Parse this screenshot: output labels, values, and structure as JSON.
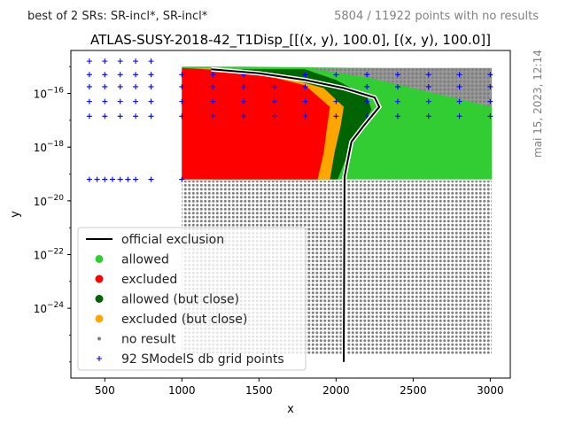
{
  "header": {
    "left": "best of 2 SRs: SR-incl*, SR-incl*",
    "right": "5804 / 11922 points with no results"
  },
  "side_note": "mai 15, 2023, 12:14",
  "chart_data": {
    "type": "scatter",
    "title": "ATLAS-SUSY-2018-42_T1Disp_[[(x, y), 100.0], [(x, y), 100.0]]",
    "xlabel": "x",
    "ylabel": "y",
    "xlim": [
      280,
      3130
    ],
    "ylog_lim": [
      -26.6,
      -14.4
    ],
    "y_scale": "log",
    "xticks": [
      500,
      1000,
      1500,
      2000,
      2500,
      3000
    ],
    "yticks": [
      {
        "exp": -16,
        "label": "10",
        "sup": "−16"
      },
      {
        "exp": -18,
        "label": "10",
        "sup": "−18"
      },
      {
        "exp": -20,
        "label": "10",
        "sup": "−20"
      },
      {
        "exp": -22,
        "label": "10",
        "sup": "−22"
      },
      {
        "exp": -24,
        "label": "10",
        "sup": "−24"
      }
    ],
    "colors": {
      "allowed": "#32cd32",
      "excluded": "#ff0000",
      "allowed_close": "#006400",
      "excluded_close": "#ffa500",
      "no_result": "#808080",
      "grid_points": "#0000ff",
      "official": "#000000"
    },
    "regions": {
      "allowed": [
        [
          1000,
          -15.0
        ],
        [
          1380,
          -15.0
        ],
        [
          3010,
          -15.1
        ],
        [
          3010,
          -19.2
        ],
        [
          1000,
          -19.2
        ]
      ],
      "no_result_top": [
        [
          1800,
          -15.05
        ],
        [
          3010,
          -15.05
        ],
        [
          3010,
          -16.5
        ],
        [
          2200,
          -15.4
        ]
      ],
      "no_result_bottom": [
        [
          1000,
          -19.25
        ],
        [
          3010,
          -19.25
        ],
        [
          3010,
          -25.7
        ],
        [
          1000,
          -25.7
        ]
      ],
      "allowed_close": [
        [
          1800,
          -15.1
        ],
        [
          2000,
          -15.5
        ],
        [
          2200,
          -16.1
        ],
        [
          2230,
          -16.6
        ],
        [
          2160,
          -17.3
        ],
        [
          2060,
          -18.5
        ],
        [
          2010,
          -19.2
        ],
        [
          1200,
          -19.2
        ],
        [
          1200,
          -15.1
        ]
      ],
      "excluded_close": [
        [
          1200,
          -15.05
        ],
        [
          1600,
          -15.3
        ],
        [
          1920,
          -15.8
        ],
        [
          2050,
          -16.5
        ],
        [
          2030,
          -17.2
        ],
        [
          1990,
          -18.2
        ],
        [
          1960,
          -19.2
        ],
        [
          1000,
          -19.2
        ],
        [
          1000,
          -15.1
        ]
      ],
      "excluded": [
        [
          1000,
          -15.05
        ],
        [
          1450,
          -15.2
        ],
        [
          1800,
          -15.7
        ],
        [
          1960,
          -16.5
        ],
        [
          1940,
          -17.3
        ],
        [
          1920,
          -18.2
        ],
        [
          1880,
          -19.2
        ],
        [
          1000,
          -19.2
        ]
      ]
    },
    "official_exclusion": [
      [
        1190,
        -15.1
      ],
      [
        1500,
        -15.25
      ],
      [
        1800,
        -15.5
      ],
      [
        2050,
        -15.8
      ],
      [
        2250,
        -16.15
      ],
      [
        2280,
        -16.5
      ],
      [
        2180,
        -17.2
      ],
      [
        2100,
        -17.8
      ],
      [
        2055,
        -19.1
      ],
      [
        2050,
        -26.0
      ]
    ],
    "grid_points": {
      "top_x": [
        400,
        500,
        600,
        700,
        800,
        1000,
        1200,
        1400,
        1600,
        1800,
        2000,
        2200,
        2400,
        2600,
        2800,
        3000
      ],
      "top_rows": [
        {
          "exp": -14.8,
          "x_max": 800
        },
        {
          "exp": -15.3,
          "x_max": 3000
        },
        {
          "exp": -15.75,
          "x_max": 3000
        },
        {
          "exp": -16.3,
          "x_max": 3000
        },
        {
          "exp": -16.85,
          "x_max": 3000
        }
      ],
      "bottom_row_exp": -19.2,
      "bottom_row_x": [
        400,
        450,
        500,
        550,
        600,
        650,
        700,
        800,
        1000
      ]
    },
    "legend": {
      "placement": "lower-left",
      "entries": [
        {
          "label": "official exclusion",
          "kind": "line",
          "key": "official"
        },
        {
          "label": "allowed",
          "kind": "dot",
          "key": "allowed"
        },
        {
          "label": "excluded",
          "kind": "dot",
          "key": "excluded"
        },
        {
          "label": "allowed (but close)",
          "kind": "dot",
          "key": "allowed_close"
        },
        {
          "label": "excluded (but close)",
          "kind": "dot",
          "key": "excluded_close"
        },
        {
          "label": "no result",
          "kind": "small",
          "key": "no_result"
        },
        {
          "label": "92 SModelS db grid points",
          "kind": "plus",
          "key": "grid_points"
        }
      ]
    }
  }
}
